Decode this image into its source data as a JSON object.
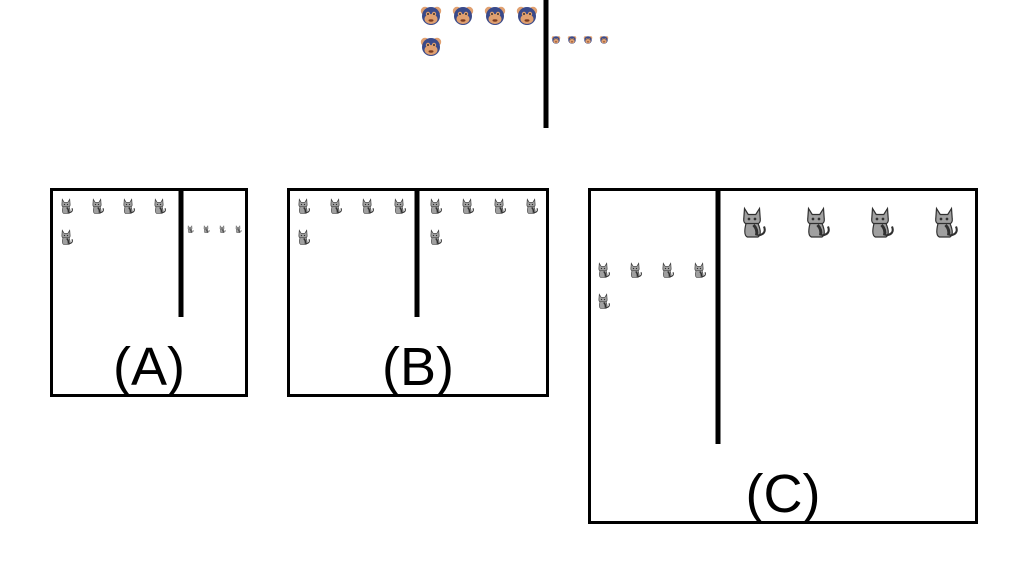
{
  "prompt": {
    "left_group": {
      "icon": "monkey-icon",
      "count": 5
    },
    "right_group": {
      "icon": "monkey-icon",
      "count": 4,
      "size": "small"
    }
  },
  "choices": [
    {
      "label": "(A)",
      "left_group": {
        "icon": "cat-icon",
        "count": 5,
        "size": "medium"
      },
      "right_group": {
        "icon": "cat-icon",
        "count": 4,
        "size": "tiny"
      }
    },
    {
      "label": "(B)",
      "left_group": {
        "icon": "cat-icon",
        "count": 5,
        "size": "medium"
      },
      "right_group": {
        "icon": "cat-icon",
        "count": 5,
        "size": "medium"
      }
    },
    {
      "label": "(C)",
      "left_group": {
        "icon": "cat-icon",
        "count": 5,
        "size": "medium"
      },
      "right_group": {
        "icon": "cat-icon",
        "count": 4,
        "size": "large"
      }
    }
  ],
  "colors": {
    "line": "#000000",
    "monkey_face": "#3a4a8a",
    "monkey_skin": "#e0a070",
    "cat_body": "#a0a0a0",
    "cat_dark": "#303030"
  }
}
